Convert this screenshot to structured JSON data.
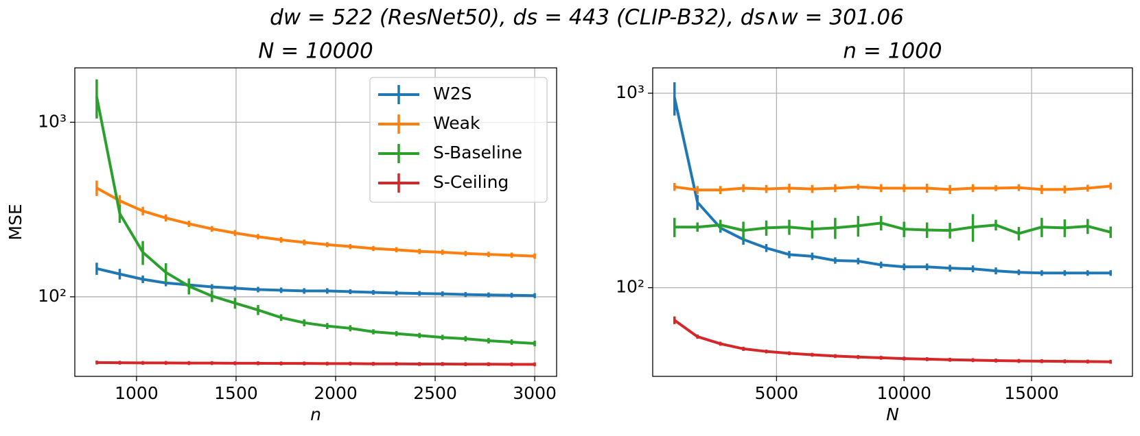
{
  "title": "dw = 522 (ResNet50), ds = 443 (CLIP-B32), ds∧w = 301.06",
  "chart_data": [
    {
      "type": "line",
      "title": "N = 10000",
      "xlabel": "n",
      "ylabel": "MSE",
      "yscale": "log",
      "grid": true,
      "legend": "upper right",
      "x": [
        800,
        915.8,
        1031.6,
        1147.4,
        1263.2,
        1378.9,
        1494.7,
        1610.5,
        1726.3,
        1842.1,
        1957.9,
        2073.7,
        2189.5,
        2305.3,
        2421.1,
        2536.8,
        2652.6,
        2768.4,
        2884.2,
        3000
      ],
      "xlim": [
        690,
        3110
      ],
      "xticks": [
        1000,
        1500,
        2000,
        2500,
        3000
      ],
      "ylim": [
        35,
        2050
      ],
      "yticks": [
        {
          "value": 100,
          "label": "10²"
        },
        {
          "value": 1000,
          "label": "10³"
        }
      ],
      "series": [
        {
          "name": "W2S",
          "color": "#1f77b4",
          "values": [
            145,
            135,
            126,
            120,
            117,
            114,
            112,
            110,
            109,
            108,
            108,
            107,
            106,
            105,
            104.5,
            104,
            103,
            102.5,
            102,
            101.5
          ],
          "errors": [
            9,
            7,
            4,
            3,
            2,
            2,
            2,
            2,
            2,
            2,
            2,
            1.5,
            1.5,
            1.5,
            1.5,
            1.5,
            1.5,
            1.5,
            1.5,
            1.5
          ]
        },
        {
          "name": "Weak",
          "color": "#ff7f0e",
          "values": [
            420,
            355,
            310,
            283,
            262,
            245,
            232,
            221,
            212,
            205,
            199,
            194,
            189,
            186,
            182,
            180,
            177,
            175,
            173,
            171
          ],
          "errors": [
            35,
            20,
            12,
            8,
            6,
            5,
            5,
            4,
            4,
            4,
            3,
            3,
            3,
            3,
            3,
            3,
            3,
            3,
            3,
            3
          ]
        },
        {
          "name": "S-Baseline",
          "color": "#2ca02c",
          "values": [
            1400,
            300,
            180,
            138,
            115,
            101,
            92,
            84,
            76,
            71,
            68,
            66,
            63,
            61.5,
            60,
            58.5,
            57.5,
            56,
            55,
            54
          ],
          "errors": [
            330,
            30,
            25,
            15,
            10,
            6,
            5,
            4,
            2,
            2,
            1.5,
            1.5,
            1,
            1,
            1,
            1,
            1,
            1,
            1,
            1
          ]
        },
        {
          "name": "S-Ceiling",
          "color": "#d62728",
          "values": [
            42,
            41.9,
            41.8,
            41.8,
            41.7,
            41.7,
            41.6,
            41.6,
            41.5,
            41.5,
            41.4,
            41.4,
            41.3,
            41.3,
            41.2,
            41.2,
            41.1,
            41.1,
            41,
            41
          ],
          "errors": [
            0.3,
            0.3,
            0.3,
            0.3,
            0.3,
            0.3,
            0.3,
            0.3,
            0.3,
            0.3,
            0.3,
            0.3,
            0.3,
            0.3,
            0.3,
            0.3,
            0.3,
            0.3,
            0.3,
            0.3
          ]
        }
      ]
    },
    {
      "type": "line",
      "title": "n = 1000",
      "xlabel": "N",
      "yscale": "log",
      "grid": true,
      "x": [
        1000,
        1900,
        2800,
        3700,
        4600,
        5500,
        6400,
        7300,
        8200,
        9100,
        10000,
        10900,
        11800,
        12700,
        13600,
        14500,
        15400,
        16300,
        17200,
        18100
      ],
      "xlim": [
        145,
        18955
      ],
      "xticks": [
        5000,
        10000,
        15000
      ],
      "ylim": [
        35,
        1350
      ],
      "yticks": [
        {
          "value": 100,
          "label": "10²"
        },
        {
          "value": 1000,
          "label": "10³"
        }
      ],
      "series": [
        {
          "name": "W2S",
          "color": "#1f77b4",
          "values": [
            950,
            275,
            203,
            177,
            160,
            148,
            145,
            138,
            137,
            131,
            128,
            128,
            126,
            125,
            122,
            120,
            119,
            119,
            119,
            119
          ],
          "errors": [
            170,
            20,
            8,
            8,
            5,
            4,
            4,
            3,
            3,
            3,
            3,
            3,
            3,
            3,
            3,
            2,
            2,
            2,
            2,
            2
          ]
        },
        {
          "name": "Weak",
          "color": "#ff7f0e",
          "values": [
            330,
            318,
            318,
            325,
            322,
            325,
            322,
            325,
            330,
            325,
            325,
            325,
            320,
            325,
            325,
            327,
            320,
            320,
            325,
            333
          ],
          "errors": [
            10,
            10,
            10,
            10,
            10,
            12,
            10,
            10,
            6,
            10,
            10,
            12,
            12,
            10,
            6,
            8,
            12,
            10,
            8,
            8
          ]
        },
        {
          "name": "S-Baseline",
          "color": "#2ca02c",
          "values": [
            205,
            205,
            210,
            197,
            203,
            205,
            200,
            203,
            208,
            215,
            200,
            198,
            197,
            205,
            210,
            190,
            205,
            203,
            207,
            193
          ],
          "errors": [
            20,
            8,
            10,
            18,
            15,
            15,
            18,
            22,
            22,
            15,
            15,
            15,
            15,
            30,
            10,
            12,
            20,
            18,
            15,
            10
          ]
        },
        {
          "name": "S-Ceiling",
          "color": "#d62728",
          "values": [
            68,
            56,
            51.5,
            48.5,
            47,
            46,
            45.2,
            44.5,
            44,
            43.6,
            43.2,
            42.9,
            42.6,
            42.4,
            42.2,
            42,
            41.9,
            41.8,
            41.7,
            41.6
          ],
          "errors": [
            2,
            0.5,
            0.4,
            0.4,
            0.3,
            0.3,
            0.3,
            0.3,
            0.3,
            0.3,
            0.3,
            0.3,
            0.3,
            0.3,
            0.3,
            0.3,
            0.3,
            0.3,
            0.3,
            0.3
          ]
        }
      ]
    }
  ]
}
